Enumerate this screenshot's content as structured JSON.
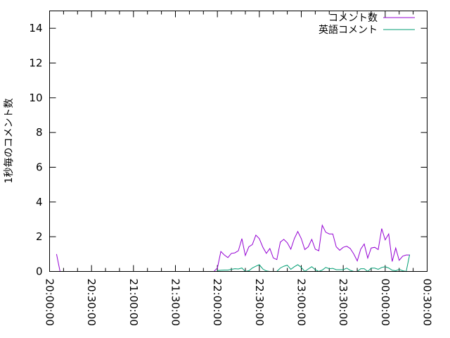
{
  "chart_data": {
    "type": "line",
    "title": "",
    "xlabel": "",
    "ylabel": "1秒毎のコメント数",
    "xlim": [
      "20:00:00",
      "00:30:00"
    ],
    "ylim": [
      0,
      15
    ],
    "x_ticks": [
      "20:00:00",
      "20:30:00",
      "21:00:00",
      "21:30:00",
      "22:00:00",
      "22:30:00",
      "23:00:00",
      "23:30:00",
      "00:00:00",
      "00:30:00"
    ],
    "y_ticks": [
      "0",
      "2",
      "4",
      "6",
      "8",
      "10",
      "12",
      "14"
    ],
    "grid": false,
    "legend_position": "top-right",
    "series": [
      {
        "name": "コメント数",
        "color": "#9400d3",
        "x": [
          "20:05:00",
          "20:07:30",
          "21:57:30",
          "22:00:00",
          "22:02:30",
          "22:05:00",
          "22:07:30",
          "22:10:00",
          "22:12:30",
          "22:15:00",
          "22:17:30",
          "22:20:00",
          "22:22:30",
          "22:25:00",
          "22:27:30",
          "22:30:00",
          "22:32:30",
          "22:35:00",
          "22:37:30",
          "22:40:00",
          "22:42:30",
          "22:45:00",
          "22:47:30",
          "22:50:00",
          "22:52:30",
          "22:55:00",
          "22:57:30",
          "23:00:00",
          "23:02:30",
          "23:05:00",
          "23:07:30",
          "23:10:00",
          "23:12:30",
          "23:15:00",
          "23:17:30",
          "23:20:00",
          "23:22:30",
          "23:25:00",
          "23:27:30",
          "23:30:00",
          "23:32:30",
          "23:35:00",
          "23:37:30",
          "23:40:00",
          "23:42:30",
          "23:45:00",
          "23:47:30",
          "23:50:00",
          "23:52:30",
          "23:55:00",
          "23:57:30",
          "00:00:00",
          "00:02:30",
          "00:05:00",
          "00:07:30",
          "00:10:00",
          "00:12:30",
          "00:15:00",
          "00:17:30"
        ],
        "values": [
          1.0,
          0,
          0,
          0.2,
          1.15,
          0.95,
          0.8,
          1.04,
          1.07,
          1.19,
          1.89,
          0.92,
          1.42,
          1.55,
          2.09,
          1.89,
          1.4,
          1.04,
          1.32,
          0.78,
          0.68,
          1.69,
          1.85,
          1.65,
          1.28,
          1.89,
          2.3,
          1.89,
          1.26,
          1.42,
          1.85,
          1.28,
          1.19,
          2.66,
          2.26,
          2.16,
          2.16,
          1.42,
          1.22,
          1.39,
          1.45,
          1.32,
          1.01,
          0.61,
          1.28,
          1.58,
          0.77,
          1.35,
          1.39,
          1.26,
          2.47,
          1.82,
          2.16,
          0.57,
          1.35,
          0.64,
          0.88,
          0.95,
          0.95
        ]
      },
      {
        "name": "英語コメント",
        "color": "#009e73",
        "x": [
          "22:00:00",
          "22:02:30",
          "22:05:00",
          "22:07:30",
          "22:10:00",
          "22:12:30",
          "22:15:00",
          "22:17:30",
          "22:20:00",
          "22:22:30",
          "22:25:00",
          "22:27:30",
          "22:30:00",
          "22:32:30",
          "22:35:00",
          "22:37:30",
          "22:40:00",
          "22:42:30",
          "22:45:00",
          "22:47:30",
          "22:50:00",
          "22:52:30",
          "22:55:00",
          "22:57:30",
          "23:00:00",
          "23:02:30",
          "23:05:00",
          "23:07:30",
          "23:10:00",
          "23:12:30",
          "23:15:00",
          "23:17:30",
          "23:20:00",
          "23:22:30",
          "23:25:00",
          "23:27:30",
          "23:30:00",
          "23:32:30",
          "23:35:00",
          "23:37:30",
          "23:40:00",
          "23:42:30",
          "23:45:00",
          "23:47:30",
          "23:50:00",
          "23:52:30",
          "23:55:00",
          "23:57:30",
          "00:00:00",
          "00:02:30",
          "00:05:00",
          "00:07:30",
          "00:10:00",
          "00:12:30",
          "00:15:00",
          "00:17:30"
        ],
        "values": [
          0.05,
          0.07,
          0.08,
          0.08,
          0.12,
          0.16,
          0.14,
          0.2,
          0,
          0.04,
          0.2,
          0.3,
          0.39,
          0.14,
          0.03,
          0,
          0,
          0,
          0.2,
          0.3,
          0.36,
          0.12,
          0.27,
          0.39,
          0.23,
          0,
          0.14,
          0.27,
          0.1,
          0,
          0.08,
          0.23,
          0.16,
          0.18,
          0.1,
          0.1,
          0.1,
          0.19,
          0.07,
          0,
          0,
          0.16,
          0.16,
          0,
          0.19,
          0.19,
          0.12,
          0.23,
          0.27,
          0.2,
          0.07,
          0.04,
          0.12,
          0.04,
          0,
          0.97
        ]
      }
    ]
  }
}
